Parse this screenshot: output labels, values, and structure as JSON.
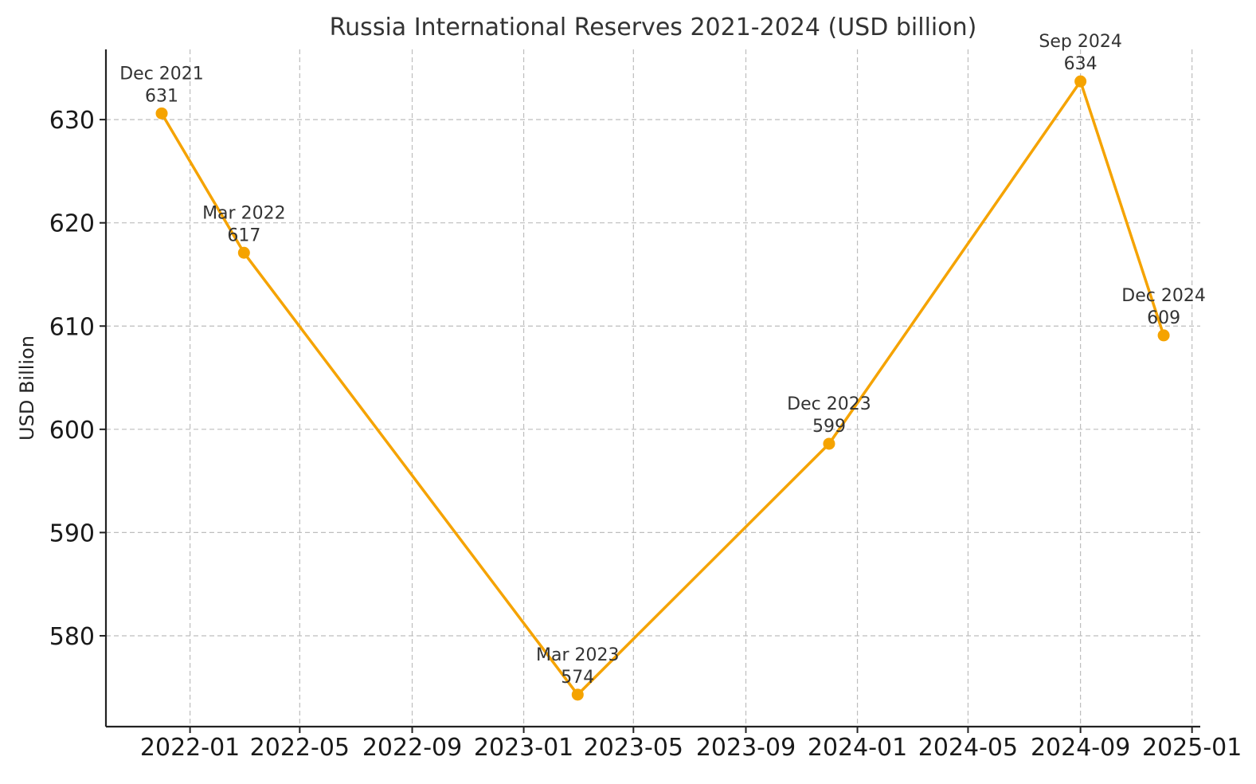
{
  "chart_data": {
    "type": "line",
    "title": "Russia International Reserves 2021-2024 (USD billion)",
    "xlabel": "",
    "ylabel": "USD Billion",
    "series": [
      {
        "points": [
          {
            "date": "2021-12-01",
            "label": "Dec 2021",
            "value": 630.6,
            "value_label": "631"
          },
          {
            "date": "2022-03-01",
            "label": "Mar 2022",
            "value": 617.1,
            "value_label": "617"
          },
          {
            "date": "2023-03-01",
            "label": "Mar 2023",
            "value": 574.3,
            "value_label": "574"
          },
          {
            "date": "2023-12-01",
            "label": "Dec 2023",
            "value": 598.6,
            "value_label": "599"
          },
          {
            "date": "2024-09-01",
            "label": "Sep 2024",
            "value": 633.7,
            "value_label": "634"
          },
          {
            "date": "2024-12-01",
            "label": "Dec 2024",
            "value": 609.1,
            "value_label": "609"
          }
        ]
      }
    ],
    "x_ticks": [
      {
        "date": "2022-01-01",
        "label": "2022-01"
      },
      {
        "date": "2022-05-01",
        "label": "2022-05"
      },
      {
        "date": "2022-09-01",
        "label": "2022-09"
      },
      {
        "date": "2023-01-01",
        "label": "2023-01"
      },
      {
        "date": "2023-05-01",
        "label": "2023-05"
      },
      {
        "date": "2023-09-01",
        "label": "2023-09"
      },
      {
        "date": "2024-01-01",
        "label": "2024-01"
      },
      {
        "date": "2024-05-01",
        "label": "2024-05"
      },
      {
        "date": "2024-09-01",
        "label": "2024-09"
      },
      {
        "date": "2025-01-01",
        "label": "2025-01"
      }
    ],
    "y_ticks": [
      580,
      590,
      600,
      610,
      620,
      630
    ],
    "xlim": [
      "2021-10-01",
      "2025-01-10"
    ],
    "ylim": [
      571.2,
      636.8
    ],
    "grid": true,
    "line_color": "#f5a300"
  }
}
